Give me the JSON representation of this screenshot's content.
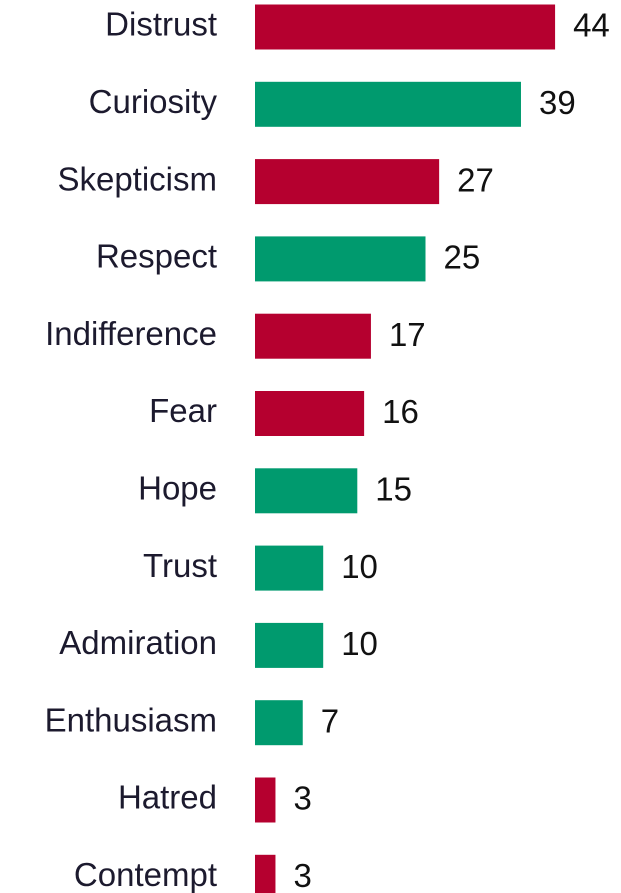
{
  "chart_data": {
    "type": "bar",
    "orientation": "horizontal",
    "categories": [
      "Distrust",
      "Curiosity",
      "Skepticism",
      "Respect",
      "Indifference",
      "Fear",
      "Hope",
      "Trust",
      "Admiration",
      "Enthusiasm",
      "Hatred",
      "Contempt"
    ],
    "values": [
      44,
      39,
      27,
      25,
      17,
      16,
      15,
      10,
      10,
      7,
      3,
      3
    ],
    "colors": [
      "#b5002f",
      "#009a6e",
      "#b5002f",
      "#009a6e",
      "#b5002f",
      "#b5002f",
      "#009a6e",
      "#009a6e",
      "#009a6e",
      "#009a6e",
      "#b5002f",
      "#b5002f"
    ]
  }
}
